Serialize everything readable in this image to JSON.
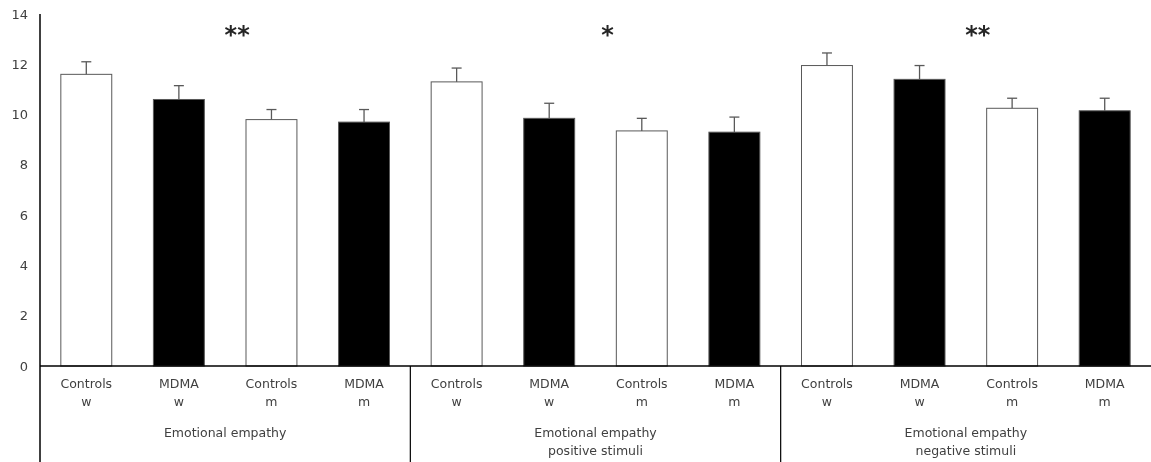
{
  "chart_data": {
    "type": "bar",
    "categories": [
      "Controls\nw",
      "MDMA\nw",
      "Controls\nm",
      "MDMA\nm",
      "Controls\nw",
      "MDMA\nw",
      "Controls\nm",
      "MDMA\nm",
      "Controls\nw",
      "MDMA\nw",
      "Controls\nm",
      "MDMA\nm"
    ],
    "values": [
      11.6,
      10.6,
      9.8,
      9.7,
      11.3,
      9.85,
      9.35,
      9.3,
      11.95,
      11.4,
      10.25,
      10.15
    ],
    "colors": [
      "#ffffff",
      "#000000",
      "#ffffff",
      "#000000",
      "#ffffff",
      "#000000",
      "#ffffff",
      "#000000",
      "#ffffff",
      "#000000",
      "#ffffff",
      "#000000"
    ],
    "errors": [
      [
        11.6,
        12.1
      ],
      [
        10.6,
        11.15
      ],
      [
        9.8,
        10.2
      ],
      [
        9.7,
        10.2
      ],
      [
        11.3,
        11.85
      ],
      [
        9.85,
        10.45
      ],
      [
        9.35,
        9.85
      ],
      [
        9.3,
        9.9
      ],
      [
        11.95,
        12.45
      ],
      [
        11.4,
        11.95
      ],
      [
        10.25,
        10.65
      ],
      [
        10.15,
        10.65
      ]
    ],
    "ylim": [
      0,
      14
    ],
    "yticks": [
      0,
      2,
      4,
      6,
      8,
      10,
      12,
      14
    ],
    "grid": false,
    "annotations": [
      "Emotional empathy",
      "Emotional empathy\npositive stimuli",
      "Emotional empathy\nnegative stimuli",
      "**",
      "*",
      "**"
    ]
  }
}
